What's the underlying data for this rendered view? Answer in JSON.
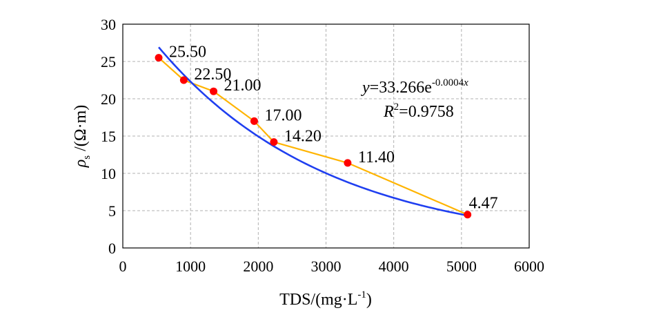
{
  "chart_data": {
    "type": "scatter",
    "xlabel": "TDS/(mg·L",
    "xlabel_sup": "-1",
    "xlabel_end": ")",
    "ylabel_symbol": "ρ",
    "ylabel_sub": "s",
    "ylabel_unit": " /(Ω·m)",
    "xlim": [
      0,
      6000
    ],
    "ylim": [
      0,
      30
    ],
    "x_ticks": [
      "0",
      "1000",
      "2000",
      "3000",
      "4000",
      "5000",
      "6000"
    ],
    "y_ticks": [
      "0",
      "5",
      "10",
      "15",
      "20",
      "25",
      "30"
    ],
    "grid": true,
    "points": [
      {
        "x": 530,
        "y": 25.5,
        "label": "25.50"
      },
      {
        "x": 900,
        "y": 22.5,
        "label": "22.50"
      },
      {
        "x": 1340,
        "y": 21.0,
        "label": "21.00"
      },
      {
        "x": 1940,
        "y": 17.0,
        "label": "17.00"
      },
      {
        "x": 2230,
        "y": 14.2,
        "label": "14.20"
      },
      {
        "x": 3320,
        "y": 11.4,
        "label": "11.40"
      },
      {
        "x": 5090,
        "y": 4.47,
        "label": "4.47"
      }
    ],
    "fit": {
      "a": 33.266,
      "b": -0.0004,
      "x_range": [
        530,
        5090
      ]
    },
    "colors": {
      "points": "#ff0000",
      "connect_line": "#ffb400",
      "fit_line": "#1f3ff0"
    },
    "equation": {
      "y_var": "y",
      "eq_body": "=33.266e",
      "eq_exp": "-0.0004",
      "eq_exp_var": "x",
      "r_var": "R",
      "r_sup": "2",
      "r_value": "=0.9758"
    }
  }
}
